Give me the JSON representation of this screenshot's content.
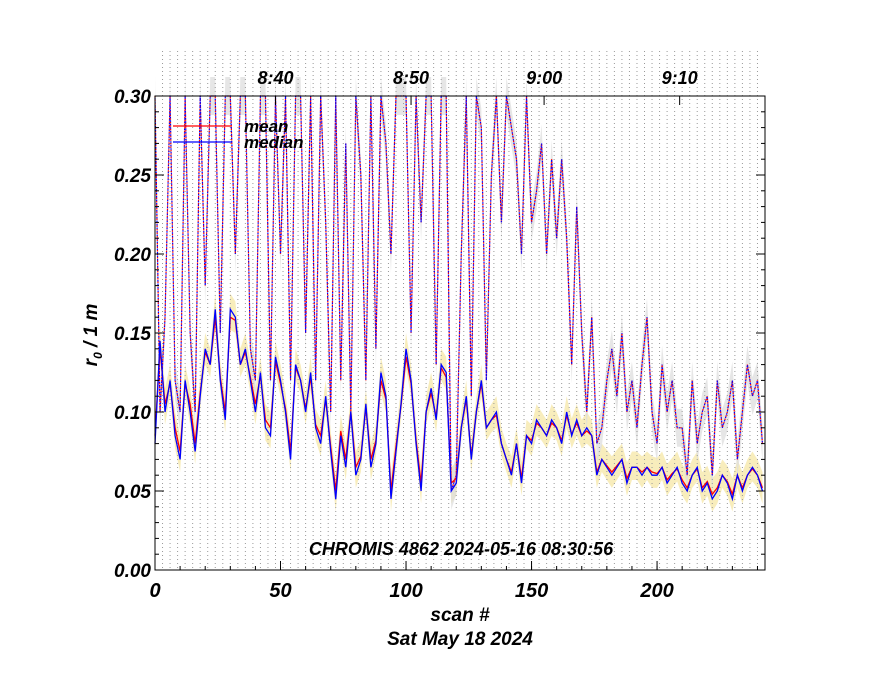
{
  "chart_data": {
    "type": "line",
    "annotation": "CHROMIS 4862 2024-05-16 08:30:56",
    "xlabel": "scan #",
    "date_label": "Sat May 18 2024",
    "ylabel_main": "r",
    "ylabel_sub": "0",
    "ylabel_rest": " / 1 m",
    "xlim": [
      0,
      243
    ],
    "ylim": [
      0.0,
      0.3
    ],
    "x_ticks": [
      "0",
      "50",
      "100",
      "150",
      "200"
    ],
    "y_ticks": [
      "0.00",
      "0.05",
      "0.10",
      "0.15",
      "0.20",
      "0.25",
      "0.30"
    ],
    "top_ticks": [
      {
        "label": "8:40",
        "scan": 48
      },
      {
        "label": "8:50",
        "scan": 102
      },
      {
        "label": "9:00",
        "scan": 155
      },
      {
        "label": "9:10",
        "scan": 209
      }
    ],
    "legend": [
      {
        "label": "mean",
        "color": "#ff0000"
      },
      {
        "label": "median",
        "color": "#0000ff"
      }
    ],
    "colors": {
      "mean": "#ff0000",
      "median": "#0000ff",
      "band": "#f5e6a0",
      "gray_band": "#dddddd",
      "dotted_grid": "#999999"
    },
    "grid": "vertical dotted lines every 3 scans",
    "series": [
      {
        "name": "median",
        "x": [
          0,
          2,
          4,
          6,
          8,
          10,
          12,
          14,
          16,
          18,
          20,
          22,
          24,
          26,
          28,
          30,
          32,
          34,
          36,
          38,
          40,
          42,
          44,
          46,
          48,
          50,
          52,
          54,
          56,
          58,
          60,
          62,
          64,
          66,
          68,
          70,
          72,
          74,
          76,
          78,
          80,
          82,
          84,
          86,
          88,
          90,
          92,
          94,
          96,
          98,
          100,
          102,
          104,
          106,
          108,
          110,
          112,
          114,
          116,
          118,
          120,
          122,
          124,
          126,
          128,
          130,
          132,
          134,
          136,
          138,
          140,
          142,
          144,
          146,
          148,
          150,
          152,
          154,
          156,
          158,
          160,
          162,
          164,
          166,
          168,
          170,
          172,
          174,
          176,
          178,
          180,
          182,
          184,
          186,
          188,
          190,
          192,
          194,
          196,
          198,
          200,
          202,
          204,
          206,
          208,
          210,
          212,
          214,
          216,
          218,
          220,
          222,
          224,
          226,
          228,
          230,
          232,
          234,
          236,
          238,
          240,
          242
        ],
        "values": [
          0.08,
          0.145,
          0.1,
          0.12,
          0.085,
          0.07,
          0.12,
          0.1,
          0.075,
          0.11,
          0.14,
          0.13,
          0.165,
          0.12,
          0.095,
          0.165,
          0.16,
          0.13,
          0.14,
          0.12,
          0.1,
          0.125,
          0.09,
          0.085,
          0.135,
          0.12,
          0.1,
          0.07,
          0.13,
          0.12,
          0.1,
          0.125,
          0.09,
          0.08,
          0.11,
          0.075,
          0.045,
          0.085,
          0.065,
          0.1,
          0.06,
          0.07,
          0.105,
          0.065,
          0.08,
          0.125,
          0.11,
          0.045,
          0.075,
          0.105,
          0.14,
          0.12,
          0.08,
          0.05,
          0.1,
          0.115,
          0.095,
          0.13,
          0.125,
          0.05,
          0.055,
          0.09,
          0.11,
          0.07,
          0.1,
          0.12,
          0.09,
          0.095,
          0.1,
          0.08,
          0.07,
          0.06,
          0.08,
          0.055,
          0.085,
          0.08,
          0.095,
          0.09,
          0.085,
          0.095,
          0.09,
          0.08,
          0.1,
          0.085,
          0.095,
          0.085,
          0.09,
          0.085,
          0.06,
          0.07,
          0.065,
          0.06,
          0.065,
          0.07,
          0.055,
          0.065,
          0.065,
          0.06,
          0.065,
          0.06,
          0.06,
          0.065,
          0.055,
          0.06,
          0.065,
          0.055,
          0.05,
          0.06,
          0.065,
          0.05,
          0.055,
          0.045,
          0.05,
          0.06,
          0.055,
          0.045,
          0.06,
          0.05,
          0.06,
          0.065,
          0.06,
          0.05
        ]
      },
      {
        "name": "mean",
        "x": [
          0,
          2,
          4,
          6,
          8,
          10,
          12,
          14,
          16,
          18,
          20,
          22,
          24,
          26,
          28,
          30,
          32,
          34,
          36,
          38,
          40,
          42,
          44,
          46,
          48,
          50,
          52,
          54,
          56,
          58,
          60,
          62,
          64,
          66,
          68,
          70,
          72,
          74,
          76,
          78,
          80,
          82,
          84,
          86,
          88,
          90,
          92,
          94,
          96,
          98,
          100,
          102,
          104,
          106,
          108,
          110,
          112,
          114,
          116,
          118,
          120,
          122,
          124,
          126,
          128,
          130,
          132,
          134,
          136,
          138,
          140,
          142,
          144,
          146,
          148,
          150,
          152,
          154,
          156,
          158,
          160,
          162,
          164,
          166,
          168,
          170,
          172,
          174,
          176,
          178,
          180,
          182,
          184,
          186,
          188,
          190,
          192,
          194,
          196,
          198,
          200,
          202,
          204,
          206,
          208,
          210,
          212,
          214,
          216,
          218,
          220,
          222,
          224,
          226,
          228,
          230,
          232,
          234,
          236,
          238,
          240,
          242
        ],
        "values": [
          0.085,
          0.14,
          0.105,
          0.118,
          0.09,
          0.075,
          0.118,
          0.105,
          0.08,
          0.112,
          0.138,
          0.13,
          0.16,
          0.122,
          0.1,
          0.16,
          0.158,
          0.13,
          0.138,
          0.122,
          0.105,
          0.123,
          0.095,
          0.09,
          0.132,
          0.118,
          0.102,
          0.075,
          0.128,
          0.12,
          0.102,
          0.122,
          0.092,
          0.085,
          0.108,
          0.078,
          0.05,
          0.088,
          0.07,
          0.1,
          0.065,
          0.072,
          0.103,
          0.07,
          0.082,
          0.12,
          0.108,
          0.05,
          0.078,
          0.104,
          0.135,
          0.118,
          0.082,
          0.055,
          0.1,
          0.112,
          0.097,
          0.128,
          0.122,
          0.055,
          0.058,
          0.09,
          0.108,
          0.072,
          0.1,
          0.118,
          0.09,
          0.095,
          0.098,
          0.08,
          0.07,
          0.062,
          0.08,
          0.058,
          0.085,
          0.082,
          0.093,
          0.09,
          0.085,
          0.093,
          0.09,
          0.082,
          0.098,
          0.086,
          0.093,
          0.085,
          0.088,
          0.085,
          0.062,
          0.07,
          0.066,
          0.062,
          0.066,
          0.07,
          0.058,
          0.065,
          0.065,
          0.062,
          0.065,
          0.062,
          0.061,
          0.065,
          0.057,
          0.061,
          0.064,
          0.057,
          0.052,
          0.06,
          0.064,
          0.052,
          0.056,
          0.048,
          0.052,
          0.06,
          0.056,
          0.048,
          0.06,
          0.052,
          0.06,
          0.064,
          0.06,
          0.052
        ]
      },
      {
        "name": "upper_median",
        "x": [
          0,
          2,
          4,
          6,
          8,
          10,
          12,
          14,
          16,
          18,
          20,
          22,
          24,
          26,
          28,
          30,
          32,
          34,
          36,
          38,
          40,
          42,
          44,
          46,
          48,
          50,
          52,
          54,
          56,
          58,
          60,
          62,
          64,
          66,
          68,
          70,
          72,
          74,
          76,
          78,
          80,
          82,
          84,
          86,
          88,
          90,
          92,
          94,
          96,
          98,
          100,
          102,
          104,
          106,
          108,
          110,
          112,
          114,
          116,
          118,
          120,
          122,
          124,
          126,
          128,
          130,
          132,
          134,
          136,
          138,
          140,
          142,
          144,
          146,
          148,
          150,
          152,
          154,
          156,
          158,
          160,
          162,
          164,
          166,
          168,
          170,
          172,
          174,
          176,
          178,
          180,
          182,
          184,
          186,
          188,
          190,
          192,
          194,
          196,
          198,
          200,
          202,
          204,
          206,
          208,
          210,
          212,
          214,
          216,
          218,
          220,
          222,
          224,
          226,
          228,
          230,
          232,
          234,
          236,
          238,
          240,
          242
        ],
        "values": [
          0.3,
          0.1,
          0.16,
          0.3,
          0.12,
          0.1,
          0.3,
          0.15,
          0.1,
          0.3,
          0.18,
          0.3,
          0.3,
          0.15,
          0.3,
          0.3,
          0.2,
          0.3,
          0.3,
          0.14,
          0.12,
          0.3,
          0.3,
          0.12,
          0.3,
          0.2,
          0.3,
          0.12,
          0.3,
          0.3,
          0.15,
          0.3,
          0.12,
          0.3,
          0.22,
          0.1,
          0.3,
          0.12,
          0.27,
          0.1,
          0.3,
          0.25,
          0.12,
          0.3,
          0.14,
          0.3,
          0.27,
          0.2,
          0.3,
          0.3,
          0.3,
          0.15,
          0.3,
          0.22,
          0.3,
          0.3,
          0.13,
          0.3,
          0.3,
          0.05,
          0.06,
          0.2,
          0.3,
          0.11,
          0.3,
          0.28,
          0.12,
          0.25,
          0.3,
          0.22,
          0.3,
          0.28,
          0.26,
          0.2,
          0.3,
          0.22,
          0.24,
          0.27,
          0.2,
          0.26,
          0.21,
          0.26,
          0.21,
          0.13,
          0.23,
          0.15,
          0.1,
          0.16,
          0.08,
          0.09,
          0.12,
          0.14,
          0.11,
          0.15,
          0.1,
          0.12,
          0.09,
          0.13,
          0.16,
          0.1,
          0.08,
          0.13,
          0.1,
          0.12,
          0.09,
          0.09,
          0.06,
          0.12,
          0.08,
          0.1,
          0.11,
          0.06,
          0.12,
          0.09,
          0.1,
          0.12,
          0.07,
          0.1,
          0.13,
          0.11,
          0.12,
          0.08
        ]
      }
    ]
  }
}
